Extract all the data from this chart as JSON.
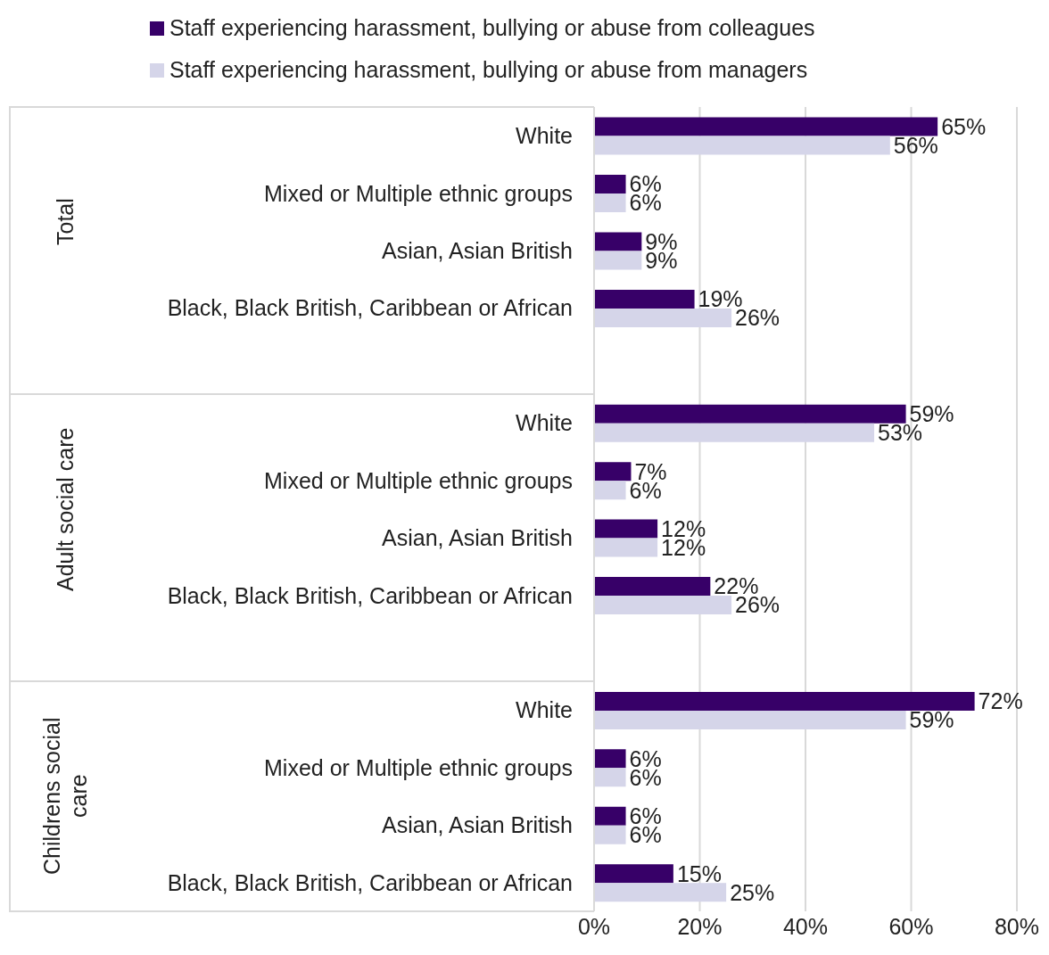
{
  "chart_data": {
    "type": "bar",
    "orientation": "horizontal",
    "categories": [
      "White",
      "Mixed or Multiple ethnic groups",
      "Asian, Asian British",
      "Black, Black British, Caribbean or African",
      null,
      "White",
      "Mixed or Multiple ethnic groups",
      "Asian, Asian British",
      "Black, Black British, Caribbean or African",
      null,
      "White",
      "Mixed or Multiple ethnic groups",
      "Asian, Asian British",
      "Black, Black British, Caribbean or African"
    ],
    "series": [
      {
        "name": "Staff experiencing harassment, bullying or abuse from colleagues",
        "color": "#370068",
        "values": [
          65,
          6,
          9,
          19,
          null,
          59,
          7,
          12,
          22,
          null,
          72,
          6,
          6,
          15
        ],
        "value_labels": [
          "65%",
          "6%",
          "9%",
          "19%",
          null,
          "59%",
          "7%",
          "12%",
          "22%",
          null,
          "72%",
          "6%",
          "6%",
          "15%"
        ]
      },
      {
        "name": "Staff experiencing harassment, bullying or abuse from managers",
        "color": "#d5d5e9",
        "values": [
          56,
          6,
          9,
          26,
          null,
          53,
          6,
          12,
          26,
          null,
          59,
          6,
          6,
          25
        ],
        "value_labels": [
          "56%",
          "6%",
          "9%",
          "26%",
          null,
          "53%",
          "6%",
          "12%",
          "26%",
          null,
          "59%",
          "6%",
          "6%",
          "25%"
        ]
      }
    ],
    "xlim": [
      0,
      80
    ],
    "xticks": [
      {
        "value": 0,
        "label": "0%"
      },
      {
        "value": 20,
        "label": "20%"
      },
      {
        "value": 40,
        "label": "40%"
      },
      {
        "value": 60,
        "label": "60%"
      },
      {
        "value": 80,
        "label": "80%"
      }
    ],
    "grid": "x",
    "legend": "top",
    "annotations": [
      "Total",
      "Adult social care",
      "Childrens social care"
    ]
  }
}
